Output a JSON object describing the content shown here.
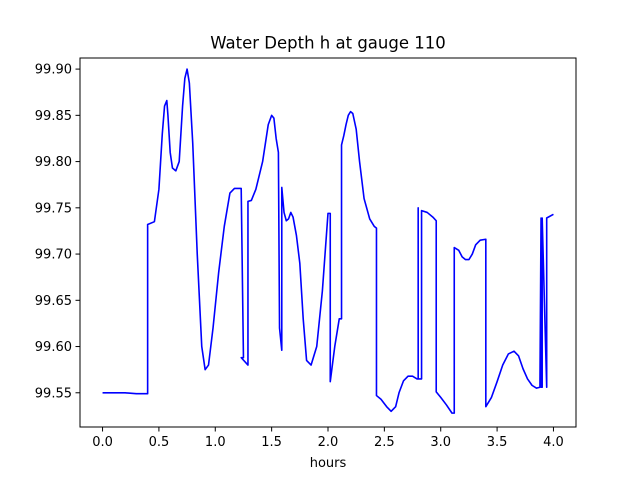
{
  "chart_data": {
    "type": "line",
    "title": "Water Depth h at gauge 110",
    "xlabel": "hours",
    "ylabel": "",
    "xlim": [
      -0.2,
      4.2
    ],
    "ylim": [
      99.513,
      99.912
    ],
    "xticks": [
      0.0,
      0.5,
      1.0,
      1.5,
      2.0,
      2.5,
      3.0,
      3.5,
      4.0
    ],
    "xtick_labels": [
      "0.0",
      "0.5",
      "1.0",
      "1.5",
      "2.0",
      "2.5",
      "3.0",
      "3.5",
      "4.0"
    ],
    "yticks": [
      99.55,
      99.6,
      99.65,
      99.7,
      99.75,
      99.8,
      99.85,
      99.9
    ],
    "ytick_labels": [
      "99.55",
      "99.60",
      "99.65",
      "99.70",
      "99.75",
      "99.80",
      "99.85",
      "99.90"
    ],
    "grid": false,
    "legend": "none",
    "color": "#0000ff",
    "series": [
      {
        "x": [
          0.0,
          0.1,
          0.2,
          0.3,
          0.4,
          0.4,
          0.46,
          0.5,
          0.53,
          0.55,
          0.57,
          0.58,
          0.6,
          0.62,
          0.65,
          0.68,
          0.71,
          0.73,
          0.75,
          0.77,
          0.8,
          0.84,
          0.88,
          0.91,
          0.94,
          0.98,
          1.03,
          1.08,
          1.13,
          1.17,
          1.2,
          1.23,
          1.25,
          1.23,
          1.29,
          1.29,
          1.32,
          1.36,
          1.42,
          1.47,
          1.5,
          1.52,
          1.54,
          1.56,
          1.57,
          1.57,
          1.59,
          1.59,
          1.61,
          1.63,
          1.65,
          1.67,
          1.69,
          1.72,
          1.75,
          1.78,
          1.81,
          1.85,
          1.9,
          1.95,
          2.0,
          2.02,
          2.02,
          2.06,
          2.1,
          2.12,
          2.12,
          2.14,
          2.16,
          2.18,
          2.2,
          2.22,
          2.25,
          2.28,
          2.32,
          2.37,
          2.41,
          2.43,
          2.43,
          2.47,
          2.52,
          2.56,
          2.6,
          2.63,
          2.67,
          2.71,
          2.75,
          2.79,
          2.8,
          2.8,
          2.8,
          2.83,
          2.83,
          2.88,
          2.93,
          2.96,
          2.96,
          3.0,
          3.05,
          3.1,
          3.12,
          3.12,
          3.16,
          3.19,
          3.22,
          3.25,
          3.28,
          3.31,
          3.35,
          3.4,
          3.4,
          3.45,
          3.5,
          3.55,
          3.6,
          3.65,
          3.69,
          3.73,
          3.77,
          3.81,
          3.85,
          3.88,
          3.89,
          3.89,
          3.9,
          3.9,
          3.94,
          3.94,
          3.94,
          4.0
        ],
        "y": [
          99.55,
          99.55,
          99.55,
          99.549,
          99.549,
          99.732,
          99.735,
          99.77,
          99.83,
          99.86,
          99.866,
          99.85,
          99.81,
          99.793,
          99.79,
          99.8,
          99.86,
          99.89,
          99.9,
          99.885,
          99.82,
          99.7,
          99.6,
          99.575,
          99.58,
          99.62,
          99.68,
          99.73,
          99.766,
          99.771,
          99.771,
          99.771,
          99.588,
          99.588,
          99.58,
          99.757,
          99.758,
          99.77,
          99.8,
          99.84,
          99.85,
          99.847,
          99.825,
          99.81,
          99.62,
          99.62,
          99.596,
          99.772,
          99.745,
          99.736,
          99.738,
          99.745,
          99.74,
          99.72,
          99.69,
          99.63,
          99.585,
          99.58,
          99.6,
          99.66,
          99.744,
          99.744,
          99.562,
          99.6,
          99.63,
          99.63,
          99.818,
          99.828,
          99.84,
          99.85,
          99.854,
          99.852,
          99.835,
          99.8,
          99.76,
          99.738,
          99.73,
          99.728,
          99.547,
          99.543,
          99.535,
          99.53,
          99.535,
          99.55,
          99.563,
          99.568,
          99.568,
          99.565,
          99.565,
          99.75,
          99.565,
          99.565,
          99.747,
          99.745,
          99.74,
          99.736,
          99.551,
          99.545,
          99.537,
          99.528,
          99.528,
          99.707,
          99.704,
          99.697,
          99.694,
          99.694,
          99.7,
          99.71,
          99.715,
          99.716,
          99.535,
          99.545,
          99.562,
          99.58,
          99.592,
          99.595,
          99.59,
          99.576,
          99.565,
          99.558,
          99.555,
          99.556,
          99.739,
          99.556,
          99.556,
          99.739,
          99.556,
          99.557,
          99.739,
          99.743
        ]
      }
    ]
  }
}
